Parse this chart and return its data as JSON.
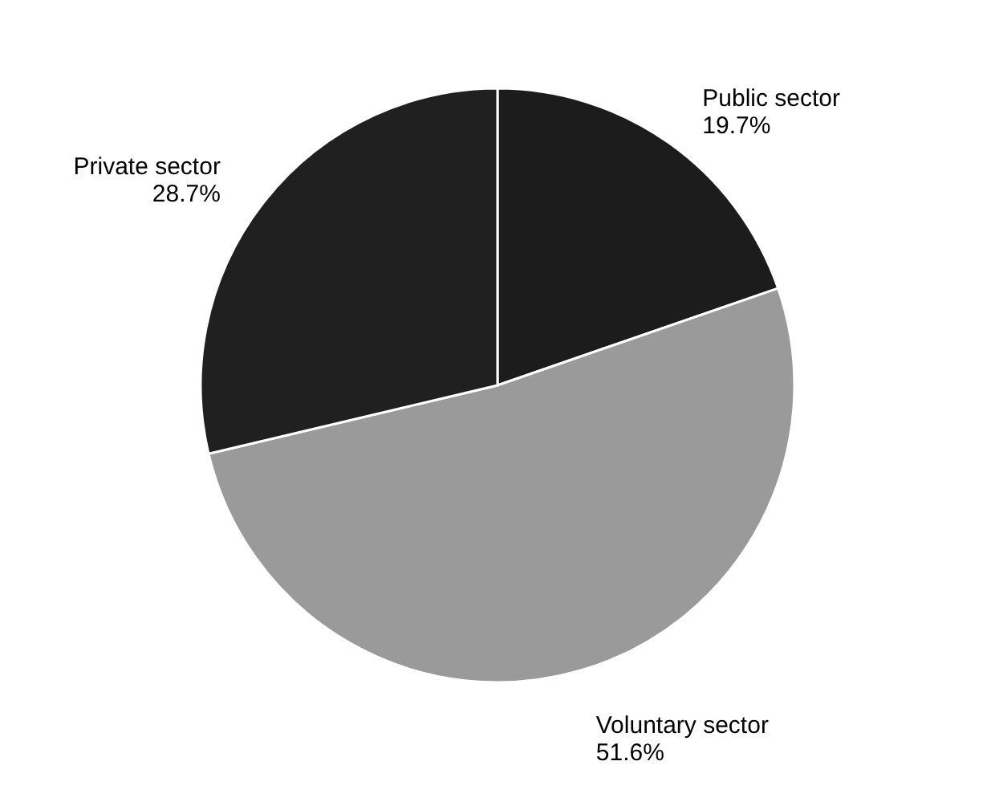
{
  "chart_data": {
    "type": "pie",
    "categories": [
      "Public sector",
      "Voluntary sector",
      "Private sector"
    ],
    "values": [
      19.7,
      51.6,
      28.7
    ],
    "colors": [
      "#1c1c1c",
      "#9a9a9a",
      "#202020"
    ],
    "value_labels": [
      "19.7%",
      "51.6%",
      "28.7%"
    ]
  }
}
